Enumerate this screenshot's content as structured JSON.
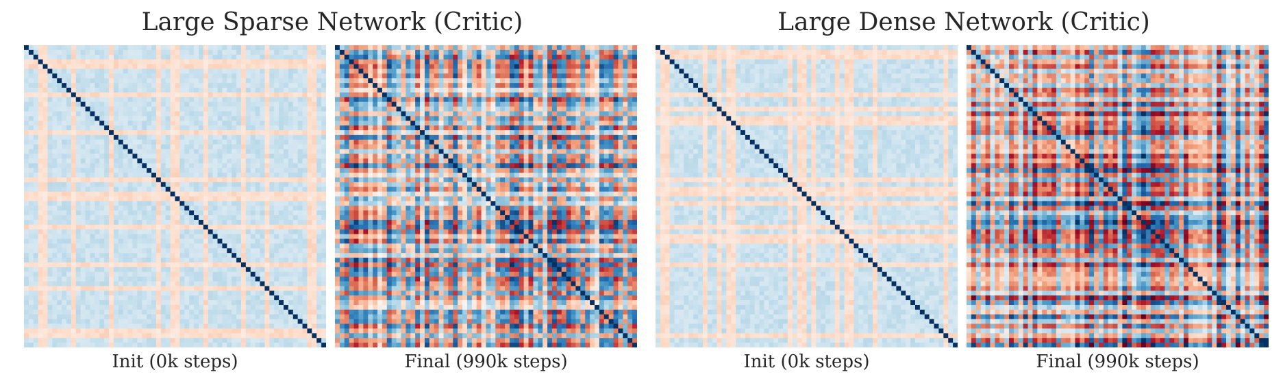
{
  "chart_data": [
    {
      "type": "heatmap",
      "figure_title": "Large Sparse Network (Critic)",
      "panels": [
        {
          "title": "Init (0k steps)",
          "n": 64,
          "diagonal": 1.0,
          "profile": "init",
          "seed": 11
        },
        {
          "title": "Final (990k steps)",
          "n": 64,
          "diagonal": 1.0,
          "profile": "final",
          "seed": 23
        }
      ],
      "colormap": "RdBu_r",
      "value_range": [
        -1,
        1
      ],
      "colorbar": false
    },
    {
      "type": "heatmap",
      "figure_title": "Large Dense Network (Critic)",
      "panels": [
        {
          "title": "Init (0k steps)",
          "n": 64,
          "diagonal": 1.0,
          "profile": "init",
          "seed": 37
        },
        {
          "title": "Final (990k steps)",
          "n": 64,
          "diagonal": 1.0,
          "profile": "final-dense",
          "seed": 53
        }
      ],
      "colormap": "RdBu_r",
      "value_range": [
        -1,
        1
      ],
      "colorbar": false
    }
  ]
}
